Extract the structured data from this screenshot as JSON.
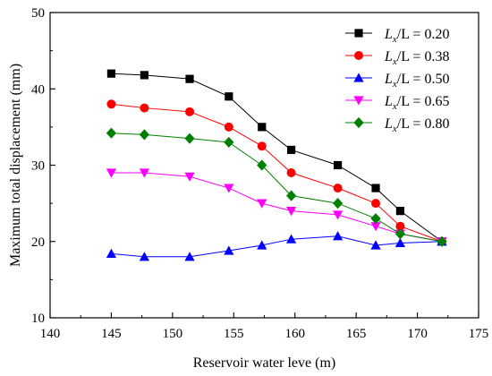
{
  "chart_data": {
    "type": "line",
    "xlabel": "Reservoir water leve (m)",
    "ylabel": "Maximum total displacement (mm)",
    "xlim": [
      140,
      175
    ],
    "ylim": [
      10,
      50
    ],
    "xticks": [
      140,
      145,
      150,
      155,
      160,
      165,
      170,
      175
    ],
    "yticks": [
      10,
      20,
      30,
      40,
      50
    ],
    "grid": false,
    "legend_position": "top-right",
    "x": [
      145.0,
      147.7,
      151.4,
      154.6,
      157.3,
      159.7,
      163.5,
      166.6,
      168.6,
      172.0
    ],
    "series": [
      {
        "name": "Lx/L = 0.20",
        "legend": {
          "var": "L",
          "sub": "x",
          "rest": "/L = 0.20"
        },
        "color": "#000000",
        "marker": "square",
        "values": [
          42.0,
          41.8,
          41.3,
          39.0,
          35.0,
          32.0,
          30.0,
          27.0,
          24.0,
          20.0
        ]
      },
      {
        "name": "Lx/L = 0.38",
        "legend": {
          "var": "L",
          "sub": "x",
          "rest": "/L = 0.38"
        },
        "color": "#ff0000",
        "marker": "circle",
        "values": [
          38.0,
          37.5,
          37.0,
          35.0,
          32.5,
          29.0,
          27.0,
          25.0,
          22.0,
          20.0
        ]
      },
      {
        "name": "Lx/L = 0.50",
        "legend": {
          "var": "L",
          "sub": "x",
          "rest": "/L = 0.50"
        },
        "color": "#0000ff",
        "marker": "triangle-up",
        "values": [
          18.4,
          18.0,
          18.0,
          18.8,
          19.5,
          20.3,
          20.7,
          19.5,
          19.8,
          20.0
        ]
      },
      {
        "name": "Lx/L = 0.65",
        "legend": {
          "var": "L",
          "sub": "x",
          "rest": "/L = 0.65"
        },
        "color": "#ff00ff",
        "marker": "triangle-down",
        "values": [
          29.0,
          29.0,
          28.5,
          27.0,
          25.0,
          24.0,
          23.5,
          22.0,
          21.0,
          20.0
        ]
      },
      {
        "name": "Lx/L = 0.80",
        "legend": {
          "var": "L",
          "sub": "x",
          "rest": "/L = 0.80"
        },
        "color": "#008000",
        "marker": "diamond",
        "values": [
          34.2,
          34.0,
          33.5,
          33.0,
          30.0,
          26.0,
          25.0,
          23.0,
          21.0,
          20.0
        ]
      }
    ]
  }
}
